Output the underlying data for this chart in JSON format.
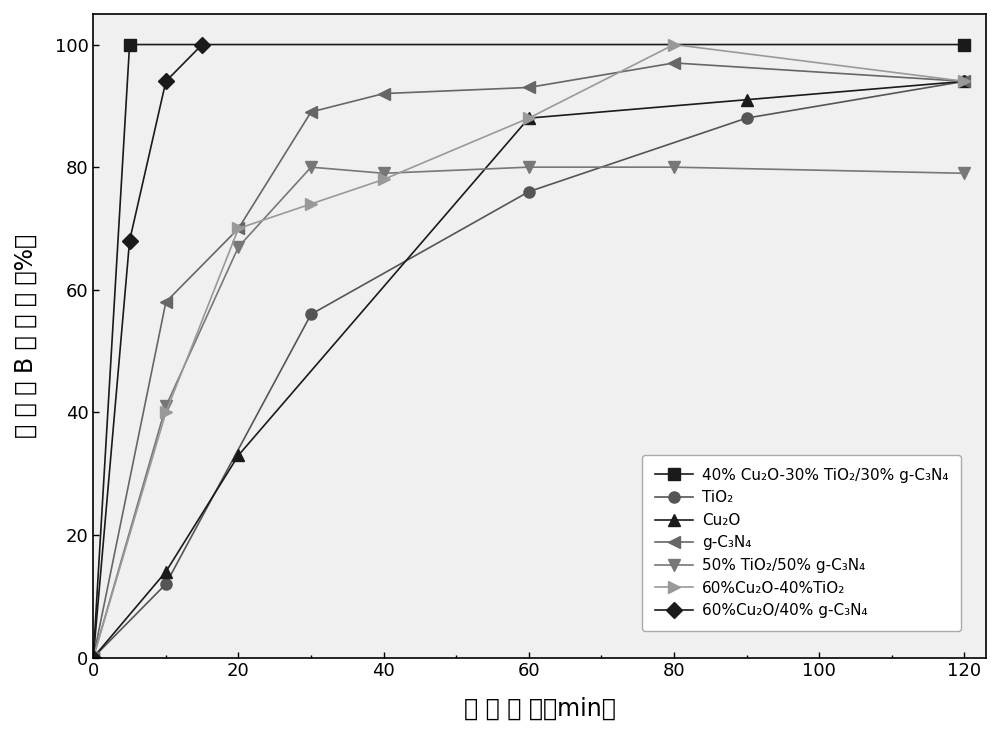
{
  "series": [
    {
      "label": "40% Cu₂O-30% TiO₂/30% g-C₃N₄",
      "x": [
        0,
        5,
        120
      ],
      "y": [
        0,
        100,
        100
      ],
      "color": "#1a1a1a",
      "marker": "s",
      "markersize": 8,
      "linestyle": "-",
      "linewidth": 1.2,
      "markerfacecolor": "#1a1a1a"
    },
    {
      "label": "TiO₂",
      "x": [
        0,
        10,
        30,
        60,
        90,
        120
      ],
      "y": [
        0,
        12,
        56,
        76,
        88,
        94
      ],
      "color": "#555555",
      "marker": "o",
      "markersize": 8,
      "linestyle": "-",
      "linewidth": 1.2,
      "markerfacecolor": "#555555"
    },
    {
      "label": "Cu₂O",
      "x": [
        0,
        10,
        20,
        60,
        90,
        120
      ],
      "y": [
        0,
        14,
        33,
        88,
        91,
        94
      ],
      "color": "#1a1a1a",
      "marker": "^",
      "markersize": 8,
      "linestyle": "-",
      "linewidth": 1.2,
      "markerfacecolor": "#1a1a1a"
    },
    {
      "label": "g-C₃N₄",
      "x": [
        0,
        10,
        20,
        30,
        40,
        60,
        80,
        120
      ],
      "y": [
        0,
        58,
        70,
        89,
        92,
        93,
        97,
        94
      ],
      "color": "#666666",
      "marker": "<",
      "markersize": 8,
      "linestyle": "-",
      "linewidth": 1.2,
      "markerfacecolor": "#666666"
    },
    {
      "label": "50% TiO₂/50% g-C₃N₄",
      "x": [
        0,
        10,
        20,
        30,
        40,
        60,
        80,
        120
      ],
      "y": [
        0,
        41,
        67,
        80,
        79,
        80,
        80,
        79
      ],
      "color": "#777777",
      "marker": "v",
      "markersize": 8,
      "linestyle": "-",
      "linewidth": 1.2,
      "markerfacecolor": "#777777"
    },
    {
      "label": "60%Cu₂O-40%TiO₂",
      "x": [
        0,
        10,
        20,
        30,
        40,
        60,
        80,
        120
      ],
      "y": [
        0,
        40,
        70,
        74,
        78,
        88,
        100,
        94
      ],
      "color": "#999999",
      "marker": ">",
      "markersize": 8,
      "linestyle": "-",
      "linewidth": 1.2,
      "markerfacecolor": "#999999"
    },
    {
      "label": "60%Cu₂O/40% g-C₃N₄",
      "x": [
        0,
        5,
        10,
        15
      ],
      "y": [
        0,
        68,
        94,
        100
      ],
      "color": "#1a1a1a",
      "marker": "D",
      "markersize": 8,
      "linestyle": "-",
      "linewidth": 1.2,
      "markerfacecolor": "#1a1a1a"
    }
  ],
  "xlabel": "降 解 时 间（min）",
  "ylabel": "罗 丹 明 B 降 解 率 （%）",
  "xlim": [
    0,
    123
  ],
  "ylim": [
    0,
    105
  ],
  "xticks": [
    0,
    20,
    40,
    60,
    80,
    100,
    120
  ],
  "yticks": [
    0,
    20,
    40,
    60,
    80,
    100
  ],
  "figsize": [
    10.0,
    7.35
  ],
  "dpi": 100,
  "background_color": "#ffffff",
  "axis_label_fontsize": 17,
  "tick_fontsize": 13,
  "legend_fontsize": 11
}
